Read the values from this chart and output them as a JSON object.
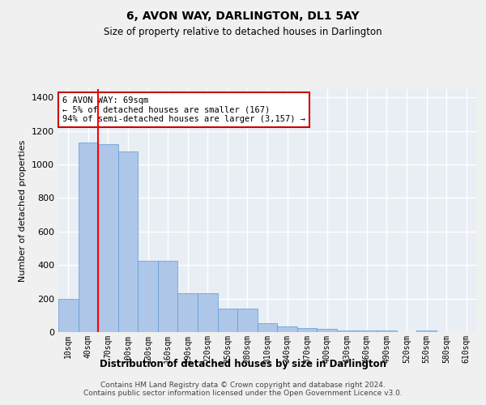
{
  "title": "6, AVON WAY, DARLINGTON, DL1 5AY",
  "subtitle": "Size of property relative to detached houses in Darlington",
  "xlabel": "Distribution of detached houses by size in Darlington",
  "ylabel": "Number of detached properties",
  "categories": [
    "10sqm",
    "40sqm",
    "70sqm",
    "100sqm",
    "130sqm",
    "160sqm",
    "190sqm",
    "220sqm",
    "250sqm",
    "280sqm",
    "310sqm",
    "340sqm",
    "370sqm",
    "400sqm",
    "430sqm",
    "460sqm",
    "490sqm",
    "520sqm",
    "550sqm",
    "580sqm",
    "610sqm"
  ],
  "values": [
    200,
    1130,
    1120,
    1080,
    425,
    425,
    230,
    230,
    140,
    140,
    55,
    35,
    25,
    18,
    8,
    8,
    8,
    0,
    8,
    0,
    0
  ],
  "bar_color": "#aec6e8",
  "bar_edge_color": "#5b9bd5",
  "background_color": "#e8eef4",
  "grid_color": "#ffffff",
  "ylim": [
    0,
    1450
  ],
  "yticks": [
    0,
    200,
    400,
    600,
    800,
    1000,
    1200,
    1400
  ],
  "red_line_index": 2,
  "annotation_text": "6 AVON WAY: 69sqm\n← 5% of detached houses are smaller (167)\n94% of semi-detached houses are larger (3,157) →",
  "annotation_box_color": "#ffffff",
  "annotation_box_edge_color": "#cc0000",
  "footer_line1": "Contains HM Land Registry data © Crown copyright and database right 2024.",
  "footer_line2": "Contains public sector information licensed under the Open Government Licence v3.0."
}
